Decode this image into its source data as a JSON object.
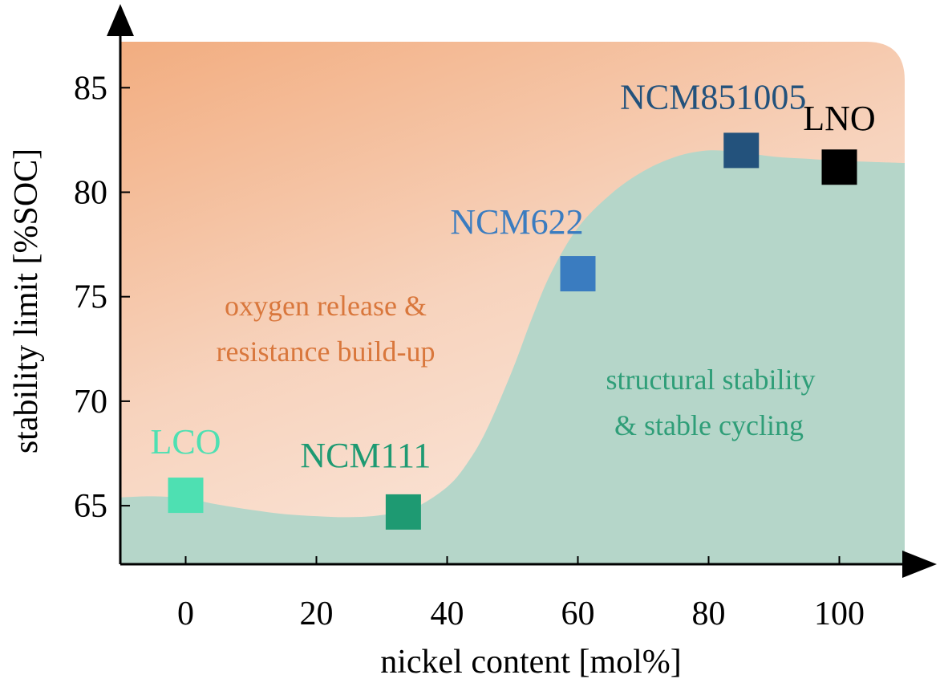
{
  "chart_data": {
    "type": "scatter",
    "xlabel": "nickel content [mol%]",
    "ylabel": "stability limit [%SOC]",
    "xlim": [
      -10,
      110
    ],
    "ylim": [
      62.2,
      87.2
    ],
    "x_ticks": [
      0,
      20,
      40,
      60,
      80,
      100
    ],
    "x_tick_labels": [
      "0",
      "20",
      "40",
      "60",
      "80",
      "100"
    ],
    "y_ticks": [
      65,
      70,
      75,
      80,
      85
    ],
    "y_tick_labels": [
      "65",
      "70",
      "75",
      "80",
      "85"
    ],
    "points": [
      {
        "label": "LCO",
        "x": 0,
        "y": 65.5,
        "color": "#4ee0b2",
        "label_color": "#4ee0b2"
      },
      {
        "label": "NCM111",
        "x": 33.3,
        "y": 64.7,
        "color": "#1e9a72",
        "label_color": "#1e9a72"
      },
      {
        "label": "NCM622",
        "x": 60,
        "y": 76.1,
        "color": "#3a7cc0",
        "label_color": "#3a7cc0"
      },
      {
        "label": "NCM851005",
        "x": 85,
        "y": 82.0,
        "color": "#23527c",
        "label_color": "#23527c"
      },
      {
        "label": "LNO",
        "x": 100,
        "y": 81.2,
        "color": "#000000",
        "label_color": "#000000"
      }
    ],
    "boundary": {
      "x": [
        -10,
        -5,
        0,
        5,
        10,
        15,
        20,
        25,
        30,
        35,
        40,
        43,
        46,
        50,
        53,
        56,
        60,
        65,
        70,
        75,
        80,
        85,
        90,
        95,
        100,
        105,
        110
      ],
      "y": [
        65.4,
        65.45,
        65.35,
        65.05,
        64.8,
        64.6,
        64.5,
        64.45,
        64.55,
        64.9,
        65.9,
        67.0,
        68.6,
        71.5,
        74.0,
        76.2,
        78.3,
        79.9,
        81.0,
        81.7,
        82.0,
        81.9,
        81.7,
        81.6,
        81.5,
        81.45,
        81.4
      ]
    },
    "regions": [
      {
        "name": "unstable",
        "text": [
          "oxygen release &",
          "resistance build-up"
        ],
        "color": "#f5a978",
        "text_color": "#d9773c"
      },
      {
        "name": "stable",
        "text": [
          "structural stability",
          "& stable cycling"
        ],
        "color": "#b5d6c9",
        "text_color": "#2f9e78"
      }
    ]
  }
}
